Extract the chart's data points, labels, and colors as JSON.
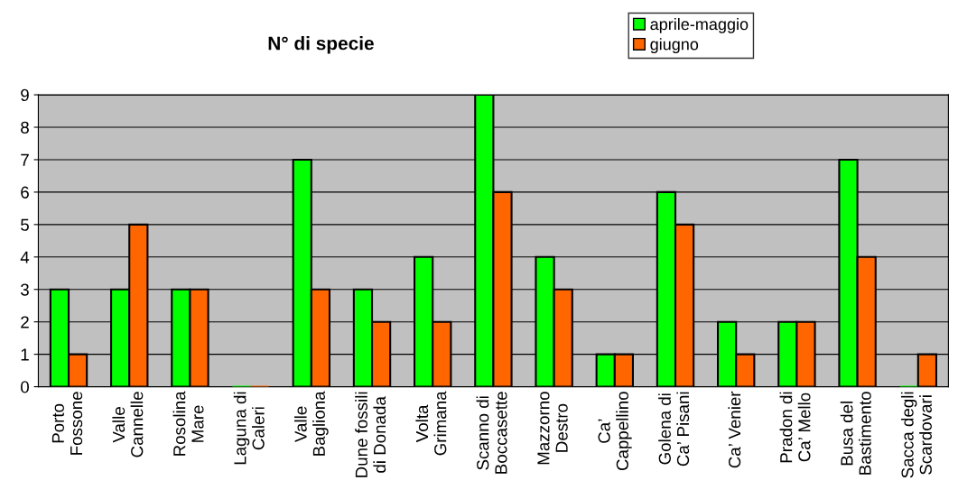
{
  "chart_data": {
    "type": "bar",
    "title": "N° di specie",
    "categories": [
      "Porto\nFossone",
      "Valle\nCannelle",
      "Rosolina\nMare",
      "Laguna di\nCaleri",
      "Valle\nBagliona",
      "Dune fossili\ndi Donada",
      "Volta\nGrimana",
      "Scanno di\nBoccasette",
      "Mazzorno\nDestro",
      "Ca’\nCappellino",
      "Golena di\nCa’ Pisani",
      "Ca’ Venier",
      "Pradon di\nCa’ Mello",
      "Busa del\nBastimento",
      "Sacca degli\nScardovari"
    ],
    "series": [
      {
        "name": "aprile-maggio",
        "color": "#00ff00",
        "values": [
          3,
          3,
          3,
          0,
          7,
          3,
          4,
          9,
          4,
          1,
          6,
          2,
          2,
          7,
          0
        ]
      },
      {
        "name": "giugno",
        "color": "#ff6600",
        "values": [
          1,
          5,
          3,
          0,
          3,
          2,
          2,
          6,
          3,
          1,
          5,
          1,
          2,
          4,
          1
        ]
      }
    ],
    "ylim": [
      0,
      9
    ],
    "yticks": [
      0,
      1,
      2,
      3,
      4,
      5,
      6,
      7,
      8,
      9
    ],
    "grid": "y",
    "legend": "top right"
  }
}
